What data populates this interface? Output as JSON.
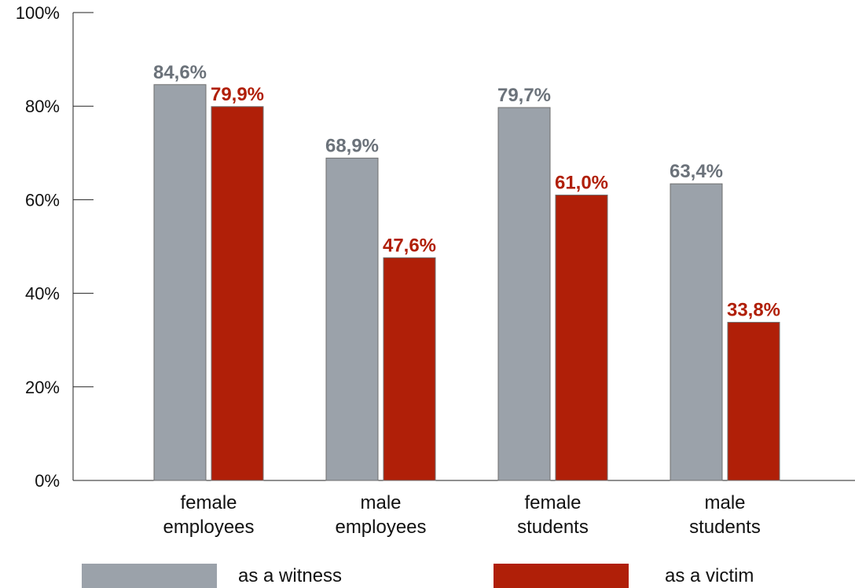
{
  "chart_data": {
    "type": "bar",
    "categories": [
      [
        "female",
        "employees"
      ],
      [
        "male",
        "employees"
      ],
      [
        "female",
        "students"
      ],
      [
        "male",
        "students"
      ]
    ],
    "series": [
      {
        "name": "as a witness",
        "values": [
          84.6,
          68.9,
          79.7,
          63.4
        ],
        "labels": [
          "84,6%",
          "68,9%",
          "79,7%",
          "63,4%"
        ],
        "color": "#9ba2aa",
        "label_color": "#6b727a"
      },
      {
        "name": "as a victim",
        "values": [
          79.9,
          47.6,
          61.0,
          33.8
        ],
        "labels": [
          "79,9%",
          "47,6%",
          "61,0%",
          "33,8%"
        ],
        "color": "#b01f08",
        "label_color": "#b01f08"
      }
    ],
    "yticks": [
      "0%",
      "20%",
      "40%",
      "60%",
      "80%",
      "100%"
    ],
    "ylim": [
      0,
      100
    ],
    "grid": false,
    "legend": "bottom"
  }
}
